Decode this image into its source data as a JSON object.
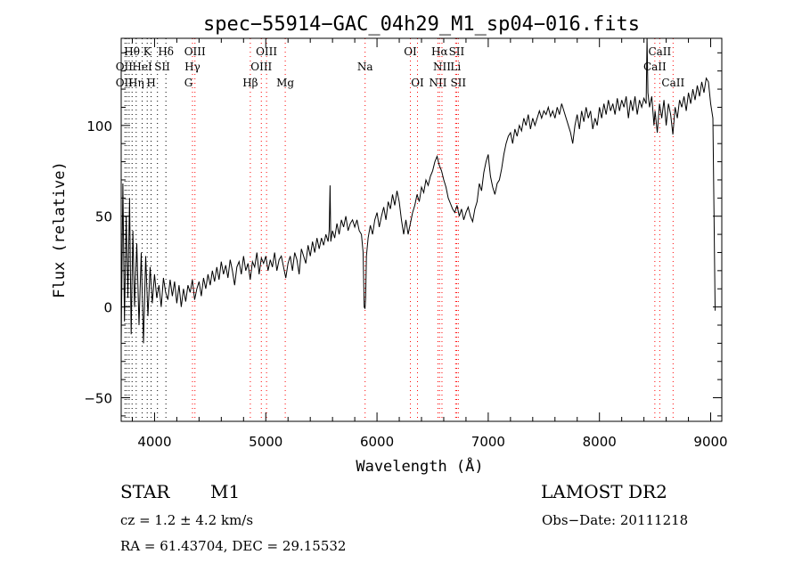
{
  "chart_data": {
    "type": "line",
    "title": "spec−55914−GAC_04h29_M1_sp04−016.fits",
    "xlabel": "Wavelength (Å)",
    "ylabel": "Flux (relative)",
    "xlim": [
      3700,
      9100
    ],
    "ylim": [
      -63,
      148
    ],
    "x_ticks": [
      4000,
      5000,
      6000,
      7000,
      8000,
      9000
    ],
    "y_ticks": [
      -50,
      0,
      50,
      100
    ],
    "grid": false,
    "series": [
      {
        "color": "#000000",
        "points": [
          [
            3700,
            -20
          ],
          [
            3715,
            68
          ],
          [
            3730,
            -8
          ],
          [
            3745,
            50
          ],
          [
            3760,
            5
          ],
          [
            3775,
            60
          ],
          [
            3790,
            -15
          ],
          [
            3805,
            42
          ],
          [
            3820,
            0
          ],
          [
            3840,
            35
          ],
          [
            3860,
            -10
          ],
          [
            3880,
            30
          ],
          [
            3900,
            -20
          ],
          [
            3920,
            28
          ],
          [
            3940,
            -5
          ],
          [
            3960,
            22
          ],
          [
            3980,
            2
          ],
          [
            4000,
            18
          ],
          [
            4020,
            5
          ],
          [
            4040,
            12
          ],
          [
            4060,
            0
          ],
          [
            4080,
            16
          ],
          [
            4100,
            8
          ],
          [
            4120,
            4
          ],
          [
            4140,
            15
          ],
          [
            4160,
            6
          ],
          [
            4180,
            14
          ],
          [
            4200,
            2
          ],
          [
            4220,
            12
          ],
          [
            4240,
            0
          ],
          [
            4260,
            10
          ],
          [
            4280,
            3
          ],
          [
            4300,
            12
          ],
          [
            4320,
            8
          ],
          [
            4340,
            15
          ],
          [
            4360,
            4
          ],
          [
            4380,
            10
          ],
          [
            4400,
            14
          ],
          [
            4420,
            6
          ],
          [
            4440,
            16
          ],
          [
            4460,
            10
          ],
          [
            4480,
            18
          ],
          [
            4500,
            12
          ],
          [
            4520,
            20
          ],
          [
            4540,
            14
          ],
          [
            4560,
            22
          ],
          [
            4580,
            15
          ],
          [
            4600,
            25
          ],
          [
            4620,
            18
          ],
          [
            4640,
            23
          ],
          [
            4660,
            16
          ],
          [
            4680,
            26
          ],
          [
            4700,
            20
          ],
          [
            4720,
            12
          ],
          [
            4740,
            22
          ],
          [
            4760,
            25
          ],
          [
            4780,
            18
          ],
          [
            4800,
            28
          ],
          [
            4820,
            20
          ],
          [
            4840,
            24
          ],
          [
            4860,
            15
          ],
          [
            4880,
            25
          ],
          [
            4900,
            22
          ],
          [
            4920,
            30
          ],
          [
            4940,
            18
          ],
          [
            4960,
            27
          ],
          [
            4980,
            24
          ],
          [
            5000,
            28
          ],
          [
            5020,
            20
          ],
          [
            5040,
            26
          ],
          [
            5060,
            22
          ],
          [
            5080,
            30
          ],
          [
            5100,
            20
          ],
          [
            5120,
            26
          ],
          [
            5140,
            28
          ],
          [
            5160,
            22
          ],
          [
            5180,
            16
          ],
          [
            5200,
            24
          ],
          [
            5220,
            28
          ],
          [
            5240,
            20
          ],
          [
            5260,
            30
          ],
          [
            5280,
            26
          ],
          [
            5300,
            18
          ],
          [
            5320,
            32
          ],
          [
            5340,
            28
          ],
          [
            5360,
            24
          ],
          [
            5380,
            34
          ],
          [
            5400,
            28
          ],
          [
            5420,
            36
          ],
          [
            5440,
            30
          ],
          [
            5460,
            38
          ],
          [
            5480,
            32
          ],
          [
            5500,
            38
          ],
          [
            5520,
            34
          ],
          [
            5540,
            40
          ],
          [
            5560,
            36
          ],
          [
            5570,
            42
          ],
          [
            5578,
            67
          ],
          [
            5584,
            36
          ],
          [
            5600,
            42
          ],
          [
            5620,
            38
          ],
          [
            5640,
            46
          ],
          [
            5660,
            40
          ],
          [
            5680,
            48
          ],
          [
            5700,
            44
          ],
          [
            5720,
            50
          ],
          [
            5740,
            42
          ],
          [
            5760,
            46
          ],
          [
            5780,
            48
          ],
          [
            5800,
            44
          ],
          [
            5820,
            48
          ],
          [
            5840,
            42
          ],
          [
            5860,
            40
          ],
          [
            5875,
            30
          ],
          [
            5885,
            0
          ],
          [
            5892,
            -1
          ],
          [
            5898,
            5
          ],
          [
            5905,
            28
          ],
          [
            5920,
            38
          ],
          [
            5940,
            45
          ],
          [
            5960,
            40
          ],
          [
            5980,
            48
          ],
          [
            6000,
            52
          ],
          [
            6020,
            44
          ],
          [
            6040,
            50
          ],
          [
            6060,
            55
          ],
          [
            6080,
            48
          ],
          [
            6100,
            58
          ],
          [
            6120,
            54
          ],
          [
            6140,
            62
          ],
          [
            6160,
            56
          ],
          [
            6180,
            64
          ],
          [
            6200,
            58
          ],
          [
            6220,
            48
          ],
          [
            6240,
            40
          ],
          [
            6260,
            48
          ],
          [
            6280,
            40
          ],
          [
            6300,
            46
          ],
          [
            6320,
            52
          ],
          [
            6340,
            56
          ],
          [
            6360,
            62
          ],
          [
            6380,
            58
          ],
          [
            6400,
            66
          ],
          [
            6420,
            63
          ],
          [
            6440,
            70
          ],
          [
            6460,
            67
          ],
          [
            6480,
            72
          ],
          [
            6500,
            75
          ],
          [
            6520,
            80
          ],
          [
            6540,
            83
          ],
          [
            6560,
            78
          ],
          [
            6580,
            75
          ],
          [
            6600,
            70
          ],
          [
            6620,
            66
          ],
          [
            6640,
            60
          ],
          [
            6660,
            57
          ],
          [
            6680,
            54
          ],
          [
            6700,
            52
          ],
          [
            6720,
            56
          ],
          [
            6740,
            50
          ],
          [
            6760,
            54
          ],
          [
            6780,
            48
          ],
          [
            6800,
            52
          ],
          [
            6820,
            55
          ],
          [
            6840,
            50
          ],
          [
            6860,
            47
          ],
          [
            6880,
            54
          ],
          [
            6900,
            58
          ],
          [
            6920,
            68
          ],
          [
            6940,
            64
          ],
          [
            6960,
            74
          ],
          [
            6980,
            80
          ],
          [
            7000,
            84
          ],
          [
            7010,
            78
          ],
          [
            7020,
            72
          ],
          [
            7040,
            66
          ],
          [
            7060,
            62
          ],
          [
            7080,
            68
          ],
          [
            7100,
            70
          ],
          [
            7120,
            76
          ],
          [
            7140,
            84
          ],
          [
            7160,
            90
          ],
          [
            7180,
            94
          ],
          [
            7200,
            96
          ],
          [
            7220,
            90
          ],
          [
            7240,
            98
          ],
          [
            7260,
            94
          ],
          [
            7280,
            100
          ],
          [
            7300,
            97
          ],
          [
            7320,
            104
          ],
          [
            7340,
            100
          ],
          [
            7360,
            106
          ],
          [
            7380,
            98
          ],
          [
            7400,
            104
          ],
          [
            7420,
            100
          ],
          [
            7440,
            104
          ],
          [
            7460,
            108
          ],
          [
            7480,
            104
          ],
          [
            7500,
            108
          ],
          [
            7520,
            106
          ],
          [
            7540,
            110
          ],
          [
            7560,
            105
          ],
          [
            7580,
            108
          ],
          [
            7600,
            104
          ],
          [
            7620,
            110
          ],
          [
            7640,
            106
          ],
          [
            7660,
            112
          ],
          [
            7680,
            108
          ],
          [
            7700,
            104
          ],
          [
            7720,
            100
          ],
          [
            7740,
            96
          ],
          [
            7760,
            90
          ],
          [
            7780,
            100
          ],
          [
            7800,
            106
          ],
          [
            7820,
            98
          ],
          [
            7840,
            108
          ],
          [
            7860,
            102
          ],
          [
            7880,
            110
          ],
          [
            7900,
            104
          ],
          [
            7920,
            108
          ],
          [
            7940,
            98
          ],
          [
            7960,
            104
          ],
          [
            7980,
            100
          ],
          [
            8000,
            110
          ],
          [
            8020,
            104
          ],
          [
            8040,
            112
          ],
          [
            8060,
            106
          ],
          [
            8080,
            114
          ],
          [
            8100,
            108
          ],
          [
            8120,
            112
          ],
          [
            8140,
            106
          ],
          [
            8160,
            115
          ],
          [
            8180,
            108
          ],
          [
            8200,
            114
          ],
          [
            8220,
            110
          ],
          [
            8240,
            116
          ],
          [
            8260,
            104
          ],
          [
            8280,
            114
          ],
          [
            8300,
            108
          ],
          [
            8320,
            116
          ],
          [
            8340,
            106
          ],
          [
            8360,
            114
          ],
          [
            8380,
            110
          ],
          [
            8400,
            115
          ],
          [
            8420,
            112
          ],
          [
            8428,
            148
          ],
          [
            8436,
            118
          ],
          [
            8450,
            110
          ],
          [
            8470,
            116
          ],
          [
            8490,
            100
          ],
          [
            8500,
            108
          ],
          [
            8520,
            96
          ],
          [
            8540,
            112
          ],
          [
            8560,
            104
          ],
          [
            8580,
            114
          ],
          [
            8600,
            100
          ],
          [
            8620,
            112
          ],
          [
            8640,
            106
          ],
          [
            8660,
            95
          ],
          [
            8680,
            110
          ],
          [
            8700,
            104
          ],
          [
            8720,
            114
          ],
          [
            8740,
            110
          ],
          [
            8760,
            116
          ],
          [
            8780,
            108
          ],
          [
            8800,
            118
          ],
          [
            8820,
            112
          ],
          [
            8840,
            120
          ],
          [
            8860,
            114
          ],
          [
            8880,
            122
          ],
          [
            8900,
            116
          ],
          [
            8920,
            124
          ],
          [
            8940,
            118
          ],
          [
            8960,
            126
          ],
          [
            8980,
            124
          ],
          [
            9000,
            112
          ],
          [
            9020,
            104
          ],
          [
            9030,
            50
          ],
          [
            9040,
            -2
          ]
        ]
      }
    ],
    "line_groups": [
      {
        "lines": [
          3734,
          3750,
          3771,
          3798,
          3835,
          3889,
          3934,
          3969,
          4102,
          4026,
          4341
        ],
        "color": "#000000"
      },
      {
        "lines": [
          4341,
          4363,
          4861,
          4960,
          5007,
          5175,
          5893,
          6300,
          6364,
          6563,
          6548,
          6584,
          6707,
          6716,
          6731,
          8498,
          8542,
          8662
        ],
        "color": "#ff0000"
      }
    ],
    "labels": [
      {
        "text": "Hθ",
        "x": 3797,
        "row": 1
      },
      {
        "text": "K",
        "x": 3934,
        "row": 1
      },
      {
        "text": "Hδ",
        "x": 4102,
        "row": 1
      },
      {
        "text": "OIII",
        "x": 4363,
        "row": 1
      },
      {
        "text": "OIII",
        "x": 5007,
        "row": 1
      },
      {
        "text": "OI",
        "x": 6300,
        "row": 1
      },
      {
        "text": "Hα",
        "x": 6563,
        "row": 1
      },
      {
        "text": "SII",
        "x": 6716,
        "row": 1
      },
      {
        "text": "CaII",
        "x": 8542,
        "row": 1
      },
      {
        "text": "OII",
        "x": 3727,
        "row": 2
      },
      {
        "text": "HeI",
        "x": 3889,
        "row": 2
      },
      {
        "text": "SII",
        "x": 4069,
        "row": 2
      },
      {
        "text": "Hγ",
        "x": 4341,
        "row": 2
      },
      {
        "text": "OIII",
        "x": 4960,
        "row": 2
      },
      {
        "text": "Na",
        "x": 5893,
        "row": 2
      },
      {
        "text": "NII",
        "x": 6584,
        "row": 2
      },
      {
        "text": "Li",
        "x": 6707,
        "row": 2
      },
      {
        "text": "CaII",
        "x": 8498,
        "row": 2
      },
      {
        "text": "OII",
        "x": 3727,
        "row": 3
      },
      {
        "text": "Hη",
        "x": 3835,
        "row": 3
      },
      {
        "text": "H",
        "x": 3969,
        "row": 3
      },
      {
        "text": "G",
        "x": 4305,
        "row": 3
      },
      {
        "text": "Hβ",
        "x": 4861,
        "row": 3
      },
      {
        "text": "Mg",
        "x": 5175,
        "row": 3
      },
      {
        "text": "OI",
        "x": 6364,
        "row": 3
      },
      {
        "text": "NII",
        "x": 6548,
        "row": 3
      },
      {
        "text": "SII",
        "x": 6731,
        "row": 3
      },
      {
        "text": "CaII",
        "x": 8662,
        "row": 3
      }
    ]
  },
  "annotations": {
    "object_type": "STAR",
    "subclass": "M1",
    "survey": "LAMOST DR2",
    "cz": "cz = 1.2 ± 4.2 km/s",
    "obs_date": "Obs−Date: 20111218",
    "coords": "RA =  61.43704, DEC =  29.15532"
  }
}
